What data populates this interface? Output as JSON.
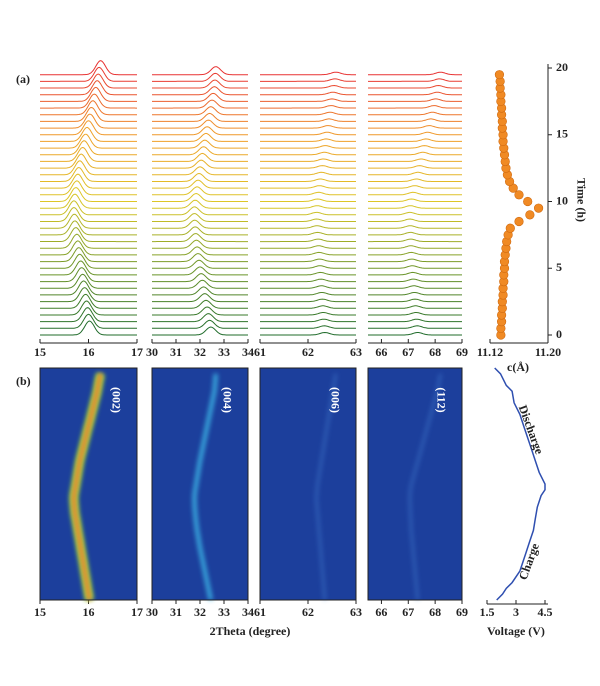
{
  "chart_data": [
    {
      "type": "waterfall",
      "label": "(a)",
      "time": [
        0,
        0.5,
        1,
        1.5,
        2,
        2.5,
        3,
        3.5,
        4,
        4.5,
        5,
        5.5,
        6,
        6.5,
        7,
        7.5,
        8,
        8.5,
        9,
        9.5,
        10,
        10.5,
        11,
        11.5,
        12,
        12.5,
        13,
        13.5,
        14,
        14.5,
        15,
        15.5,
        16,
        16.5,
        17,
        17.5,
        18,
        18.5,
        19,
        19.5
      ],
      "panels": [
        {
          "xlim": [
            15,
            17
          ],
          "xticks": [
            15,
            16,
            17
          ],
          "peaks": [
            16.02,
            16.0,
            15.98,
            15.96,
            15.94,
            15.92,
            15.9,
            15.88,
            15.86,
            15.84,
            15.82,
            15.8,
            15.78,
            15.76,
            15.74,
            15.72,
            15.71,
            15.7,
            15.7,
            15.72,
            15.74,
            15.76,
            15.78,
            15.8,
            15.82,
            15.85,
            15.88,
            15.91,
            15.94,
            15.97,
            16.0,
            16.03,
            16.06,
            16.09,
            16.12,
            16.15,
            16.18,
            16.2,
            16.22,
            16.25
          ]
        },
        {
          "xlim": [
            30,
            34
          ],
          "xticks": [
            30,
            31,
            32,
            33,
            34
          ],
          "peaks": [
            32.45,
            32.4,
            32.35,
            32.3,
            32.25,
            32.2,
            32.15,
            32.1,
            32.05,
            32.0,
            31.96,
            31.92,
            31.88,
            31.85,
            31.82,
            31.8,
            31.78,
            31.77,
            31.77,
            31.8,
            31.84,
            31.88,
            31.92,
            31.96,
            32.0,
            32.05,
            32.1,
            32.15,
            32.2,
            32.25,
            32.3,
            32.35,
            32.4,
            32.45,
            32.5,
            32.55,
            32.6,
            32.62,
            32.64,
            32.66
          ]
        },
        {
          "xlim": [
            61,
            63
          ],
          "xticks": [
            61,
            62,
            63
          ],
          "peaks": [
            62.35,
            62.34,
            62.33,
            62.32,
            62.31,
            62.3,
            62.29,
            62.28,
            62.27,
            62.26,
            62.25,
            62.24,
            62.23,
            62.22,
            62.21,
            62.2,
            62.19,
            62.18,
            62.18,
            62.19,
            62.2,
            62.22,
            62.24,
            62.26,
            62.28,
            62.3,
            62.32,
            62.34,
            62.36,
            62.38,
            62.4,
            62.42,
            62.44,
            62.46,
            62.48,
            62.5,
            62.52,
            62.54,
            62.56,
            62.58
          ]
        },
        {
          "xlim": [
            65.5,
            69
          ],
          "xticks": [
            66,
            67,
            68,
            69
          ],
          "peaks": [
            67.35,
            67.33,
            67.31,
            67.29,
            67.27,
            67.25,
            67.23,
            67.21,
            67.19,
            67.17,
            67.15,
            67.13,
            67.11,
            67.1,
            67.09,
            67.08,
            67.07,
            67.06,
            67.06,
            67.08,
            67.12,
            67.18,
            67.24,
            67.3,
            67.36,
            67.42,
            67.48,
            67.54,
            67.6,
            67.66,
            67.72,
            67.78,
            67.84,
            67.9,
            67.96,
            68.02,
            68.08,
            68.12,
            68.16,
            68.2
          ]
        }
      ]
    },
    {
      "type": "scatter",
      "xlabel": "c(Å)",
      "ylabel": "Time (h)",
      "color": "#f08a24",
      "x": [
        11.135,
        11.135,
        11.136,
        11.136,
        11.137,
        11.137,
        11.138,
        11.138,
        11.139,
        11.139,
        11.14,
        11.14,
        11.141,
        11.142,
        11.143,
        11.145,
        11.148,
        11.16,
        11.175,
        11.187,
        11.172,
        11.16,
        11.152,
        11.147,
        11.144,
        11.142,
        11.141,
        11.14,
        11.139,
        11.138,
        11.138,
        11.137,
        11.137,
        11.136,
        11.136,
        11.135,
        11.135,
        11.134,
        11.134,
        11.133
      ],
      "y": [
        0,
        0.5,
        1,
        1.5,
        2,
        2.5,
        3,
        3.5,
        4,
        4.5,
        5,
        5.5,
        6,
        6.5,
        7,
        7.5,
        8,
        8.5,
        9,
        9.5,
        10,
        10.5,
        11,
        11.5,
        12,
        12.5,
        13,
        13.5,
        14,
        14.5,
        15,
        15.5,
        16,
        16.5,
        17,
        17.5,
        18,
        18.5,
        19,
        19.5
      ],
      "xlim": [
        11.12,
        11.2
      ],
      "xticks": [
        {
          "value": 11.12,
          "label": "11.12"
        },
        {
          "value": 11.2,
          "label": "11.20"
        }
      ],
      "ylim": [
        0,
        20
      ],
      "yticks": [
        0,
        5,
        10,
        15,
        20
      ]
    },
    {
      "type": "heatmap",
      "label": "(b)",
      "xlabel": "2Theta (degree)",
      "panels": [
        {
          "hkl": "(002)"
        },
        {
          "hkl": "(004)"
        },
        {
          "hkl": "(006)"
        },
        {
          "hkl": "(112)"
        }
      ]
    },
    {
      "type": "line",
      "xlabel": "Voltage (V)",
      "color": "#2f4fb0",
      "x": [
        2.0,
        2.3,
        2.5,
        2.8,
        3.2,
        3.5,
        3.7,
        3.9,
        4.0,
        4.1,
        4.3,
        4.5,
        4.5,
        4.2,
        4.0,
        3.8,
        3.6,
        3.4,
        3.2,
        2.9,
        2.8,
        2.5,
        2.2,
        1.9
      ],
      "y": [
        0,
        0.5,
        1,
        1.5,
        2.5,
        4,
        5,
        6,
        7,
        8,
        9,
        9.5,
        10,
        11,
        12,
        13,
        14,
        15,
        16,
        17,
        18,
        18.5,
        19.5,
        20
      ],
      "xlim": [
        1.5,
        4.5
      ],
      "xticks": [
        1.5,
        3,
        4.5
      ],
      "ylim": [
        0,
        20
      ],
      "annotations": [
        "Discharge",
        "Charge"
      ]
    }
  ]
}
